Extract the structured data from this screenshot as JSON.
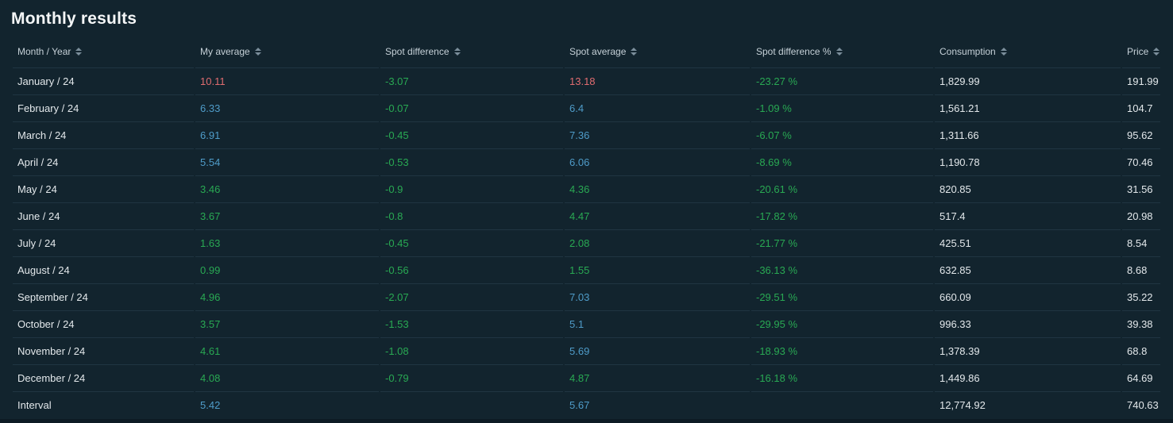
{
  "title": "Monthly results",
  "colors": {
    "red": "#e06c70",
    "green": "#29a953",
    "blue": "#4f9cc9",
    "white": "#e3e8eb",
    "panel_background": "#12242e",
    "page_background": "#0d1b24",
    "row_border": "#203542",
    "header_text": "#c5d0d7"
  },
  "table": {
    "columns": [
      {
        "id": "month",
        "label": "Month / Year",
        "sortable": true
      },
      {
        "id": "my_average",
        "label": "My average",
        "sortable": true
      },
      {
        "id": "spot_difference",
        "label": "Spot difference",
        "sortable": true
      },
      {
        "id": "spot_average",
        "label": "Spot average",
        "sortable": true
      },
      {
        "id": "spot_difference_pct",
        "label": "Spot difference %",
        "sortable": true
      },
      {
        "id": "consumption",
        "label": "Consumption",
        "sortable": true
      },
      {
        "id": "price",
        "label": "Price",
        "sortable": true
      }
    ],
    "rows": [
      {
        "month": "January / 24",
        "my_average": {
          "v": "10.11",
          "c": "red"
        },
        "spot_difference": {
          "v": "-3.07",
          "c": "green"
        },
        "spot_average": {
          "v": "13.18",
          "c": "red"
        },
        "spot_difference_pct": {
          "v": "-23.27 %",
          "c": "green"
        },
        "consumption": "1,829.99",
        "price": "191.99"
      },
      {
        "month": "February / 24",
        "my_average": {
          "v": "6.33",
          "c": "blue"
        },
        "spot_difference": {
          "v": "-0.07",
          "c": "green"
        },
        "spot_average": {
          "v": "6.4",
          "c": "blue"
        },
        "spot_difference_pct": {
          "v": "-1.09 %",
          "c": "green"
        },
        "consumption": "1,561.21",
        "price": "104.7"
      },
      {
        "month": "March / 24",
        "my_average": {
          "v": "6.91",
          "c": "blue"
        },
        "spot_difference": {
          "v": "-0.45",
          "c": "green"
        },
        "spot_average": {
          "v": "7.36",
          "c": "blue"
        },
        "spot_difference_pct": {
          "v": "-6.07 %",
          "c": "green"
        },
        "consumption": "1,311.66",
        "price": "95.62"
      },
      {
        "month": "April / 24",
        "my_average": {
          "v": "5.54",
          "c": "blue"
        },
        "spot_difference": {
          "v": "-0.53",
          "c": "green"
        },
        "spot_average": {
          "v": "6.06",
          "c": "blue"
        },
        "spot_difference_pct": {
          "v": "-8.69 %",
          "c": "green"
        },
        "consumption": "1,190.78",
        "price": "70.46"
      },
      {
        "month": "May / 24",
        "my_average": {
          "v": "3.46",
          "c": "green"
        },
        "spot_difference": {
          "v": "-0.9",
          "c": "green"
        },
        "spot_average": {
          "v": "4.36",
          "c": "green"
        },
        "spot_difference_pct": {
          "v": "-20.61 %",
          "c": "green"
        },
        "consumption": "820.85",
        "price": "31.56"
      },
      {
        "month": "June / 24",
        "my_average": {
          "v": "3.67",
          "c": "green"
        },
        "spot_difference": {
          "v": "-0.8",
          "c": "green"
        },
        "spot_average": {
          "v": "4.47",
          "c": "green"
        },
        "spot_difference_pct": {
          "v": "-17.82 %",
          "c": "green"
        },
        "consumption": "517.4",
        "price": "20.98"
      },
      {
        "month": "July / 24",
        "my_average": {
          "v": "1.63",
          "c": "green"
        },
        "spot_difference": {
          "v": "-0.45",
          "c": "green"
        },
        "spot_average": {
          "v": "2.08",
          "c": "green"
        },
        "spot_difference_pct": {
          "v": "-21.77 %",
          "c": "green"
        },
        "consumption": "425.51",
        "price": "8.54"
      },
      {
        "month": "August / 24",
        "my_average": {
          "v": "0.99",
          "c": "green"
        },
        "spot_difference": {
          "v": "-0.56",
          "c": "green"
        },
        "spot_average": {
          "v": "1.55",
          "c": "green"
        },
        "spot_difference_pct": {
          "v": "-36.13 %",
          "c": "green"
        },
        "consumption": "632.85",
        "price": "8.68"
      },
      {
        "month": "September / 24",
        "my_average": {
          "v": "4.96",
          "c": "green"
        },
        "spot_difference": {
          "v": "-2.07",
          "c": "green"
        },
        "spot_average": {
          "v": "7.03",
          "c": "blue"
        },
        "spot_difference_pct": {
          "v": "-29.51 %",
          "c": "green"
        },
        "consumption": "660.09",
        "price": "35.22"
      },
      {
        "month": "October / 24",
        "my_average": {
          "v": "3.57",
          "c": "green"
        },
        "spot_difference": {
          "v": "-1.53",
          "c": "green"
        },
        "spot_average": {
          "v": "5.1",
          "c": "blue"
        },
        "spot_difference_pct": {
          "v": "-29.95 %",
          "c": "green"
        },
        "consumption": "996.33",
        "price": "39.38"
      },
      {
        "month": "November / 24",
        "my_average": {
          "v": "4.61",
          "c": "green"
        },
        "spot_difference": {
          "v": "-1.08",
          "c": "green"
        },
        "spot_average": {
          "v": "5.69",
          "c": "blue"
        },
        "spot_difference_pct": {
          "v": "-18.93 %",
          "c": "green"
        },
        "consumption": "1,378.39",
        "price": "68.8"
      },
      {
        "month": "December / 24",
        "my_average": {
          "v": "4.08",
          "c": "green"
        },
        "spot_difference": {
          "v": "-0.79",
          "c": "green"
        },
        "spot_average": {
          "v": "4.87",
          "c": "green"
        },
        "spot_difference_pct": {
          "v": "-16.18 %",
          "c": "green"
        },
        "consumption": "1,449.86",
        "price": "64.69"
      },
      {
        "month": "Interval",
        "my_average": {
          "v": "5.42",
          "c": "blue"
        },
        "spot_difference": null,
        "spot_average": {
          "v": "5.67",
          "c": "blue"
        },
        "spot_difference_pct": null,
        "consumption": "12,774.92",
        "price": "740.63"
      }
    ]
  }
}
